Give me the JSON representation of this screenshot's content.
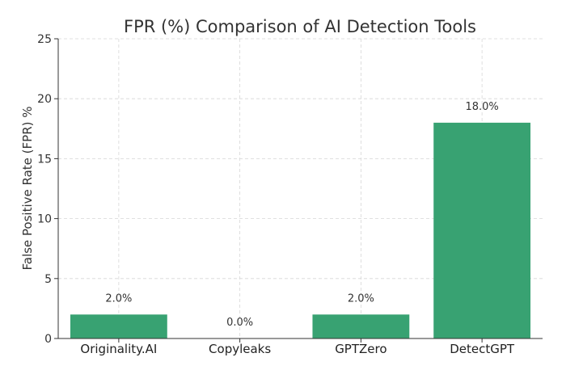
{
  "chart_data": {
    "type": "bar",
    "title": "FPR (%) Comparison of AI Detection Tools",
    "xlabel": "",
    "ylabel": "False Positive Rate (FPR) %",
    "categories": [
      "Originality.AI",
      "Copyleaks",
      "GPTZero",
      "DetectGPT"
    ],
    "values": [
      2.0,
      0.0,
      2.0,
      18.0
    ],
    "data_labels": [
      "2.0%",
      "0.0%",
      "2.0%",
      "18.0%"
    ],
    "ylim": [
      0,
      25
    ],
    "yticks": [
      0,
      5,
      10,
      15,
      20,
      25
    ],
    "grid": true,
    "bar_color": "#38a272"
  }
}
